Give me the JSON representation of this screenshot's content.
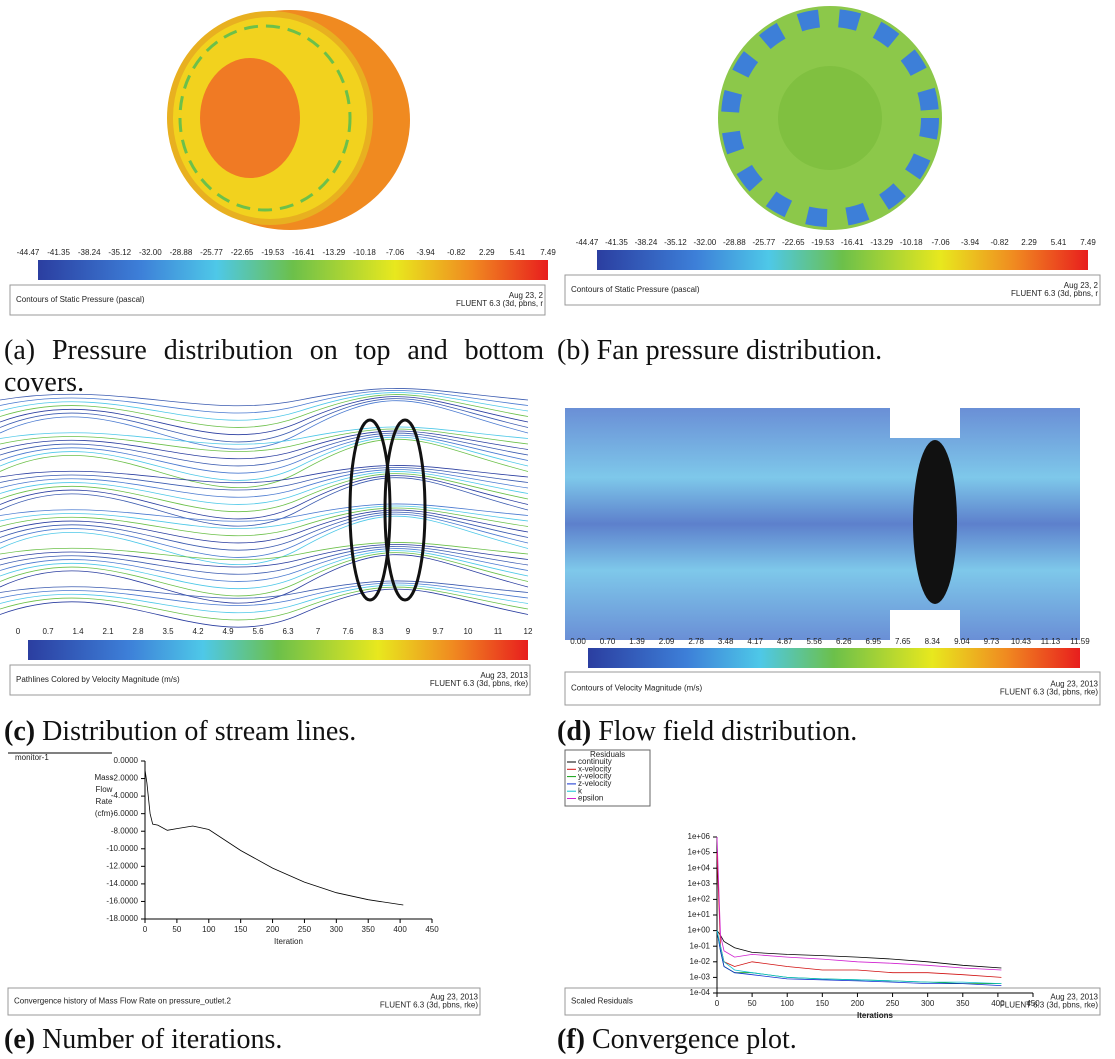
{
  "panels": [
    {
      "label": "(a)",
      "caption": "Pressure distribution on top and bottom covers.",
      "colorbar": [
        "-44.47",
        "-41.35",
        "-38.24",
        "-35.12",
        "-32.00",
        "-28.88",
        "-25.77",
        "-22.65",
        "-19.53",
        "-16.41",
        "-13.29",
        "-10.18",
        "-7.06",
        "-3.94",
        "-0.82",
        "2.29",
        "5.41",
        "7.49"
      ],
      "footer": {
        "title": "Contours of Static Pressure (pascal)",
        "date": "Aug 23, 2",
        "software": "FLUENT 6.3 (3d, pbns, r"
      }
    },
    {
      "label": "(b)",
      "caption": "Fan pressure distribution.",
      "colorbar": [
        "-44.47",
        "-41.35",
        "-38.24",
        "-35.12",
        "-32.00",
        "-28.88",
        "-25.77",
        "-22.65",
        "-19.53",
        "-16.41",
        "-13.29",
        "-10.18",
        "-7.06",
        "-3.94",
        "-0.82",
        "2.29",
        "5.41",
        "7.49"
      ],
      "footer": {
        "title": "Contours of Static Pressure (pascal)",
        "date": "Aug 23, 2",
        "software": "FLUENT 6.3 (3d, pbns, r"
      }
    },
    {
      "label": "(c)",
      "caption": "Distribution of stream lines.",
      "colorbar": [
        "0",
        "0.7",
        "1.4",
        "2.1",
        "2.8",
        "3.5",
        "4.2",
        "4.9",
        "5.6",
        "6.3",
        "7",
        "7.6",
        "8.3",
        "9",
        "9.7",
        "10",
        "11",
        "12"
      ],
      "footer": {
        "title": "Pathlines Colored by Velocity Magnitude (m/s)",
        "date": "Aug 23, 2013",
        "software": "FLUENT 6.3 (3d, pbns, rke)"
      }
    },
    {
      "label": "(d)",
      "caption": "Flow field distribution.",
      "colorbar": [
        "0.00",
        "0.70",
        "1.39",
        "2.09",
        "2.78",
        "3.48",
        "4.17",
        "4.87",
        "5.56",
        "6.26",
        "6.95",
        "7.65",
        "8.34",
        "9.04",
        "9.73",
        "10.43",
        "11.13",
        "11.59"
      ],
      "footer": {
        "title": "Contours of Velocity Magnitude (m/s)",
        "date": "Aug 23, 2013",
        "software": "FLUENT 6.3 (3d, pbns, rke)"
      }
    },
    {
      "label": "(e)",
      "caption": "Number of iterations.",
      "footer": {
        "title": "Convergence history of Mass Flow Rate on pressure_outlet.2",
        "date": "Aug 23, 2013",
        "software": "FLUENT 6.3 (3d, pbns, rke)"
      },
      "chart": {
        "type": "line",
        "x_label": "Iteration",
        "y_label": [
          "Mass",
          "Flow",
          "Rate",
          "(cfm)"
        ],
        "x": [
          0,
          3,
          8,
          12,
          20,
          35,
          50,
          75,
          100,
          150,
          200,
          250,
          300,
          350,
          405
        ],
        "series": [
          {
            "name": "monitor-1",
            "color": "#000000",
            "values": [
              -1,
              -2.5,
              -6,
              -7.2,
              -7.3,
              -7.9,
              -7.7,
              -7.4,
              -7.8,
              -10.2,
              -12.2,
              -13.8,
              -15,
              -15.8,
              -16.4
            ]
          }
        ],
        "xlim": [
          0,
          450
        ],
        "xticks": [
          0,
          50,
          100,
          150,
          200,
          250,
          300,
          350,
          400,
          450
        ],
        "ylim": [
          -18,
          0
        ],
        "yticks": [
          {
            "value": 0,
            "label": "0.0000"
          },
          {
            "value": -2,
            "label": "-2.0000"
          },
          {
            "value": -4,
            "label": "-4.0000"
          },
          {
            "value": -6,
            "label": "-6.0000"
          },
          {
            "value": -8,
            "label": "-8.0000"
          },
          {
            "value": -10,
            "label": "-10.0000"
          },
          {
            "value": -12,
            "label": "-12.0000"
          },
          {
            "value": -14,
            "label": "-14.0000"
          },
          {
            "value": -16,
            "label": "-16.0000"
          },
          {
            "value": -18,
            "label": "-18.0000"
          }
        ]
      }
    },
    {
      "label": "(f)",
      "caption": "Convergence plot.",
      "footer": {
        "title": "Scaled Residuals",
        "date": "Aug 23, 2013",
        "software": "FLUENT 6.3 (3d, pbns, rke)"
      },
      "chart": {
        "type": "line",
        "log_y": true,
        "legend_title": "Residuals",
        "x_label": "Iterations",
        "x": [
          0,
          5,
          10,
          25,
          50,
          100,
          150,
          200,
          250,
          300,
          350,
          405
        ],
        "series": [
          {
            "name": "continuity",
            "color": "#000000",
            "values": [
              1,
              0.5,
              0.2,
              0.08,
              0.04,
              0.03,
              0.025,
              0.02,
              0.015,
              0.01,
              0.006,
              0.004
            ]
          },
          {
            "name": "x-velocity",
            "color": "#d01010",
            "values": [
              100000,
              0.1,
              0.01,
              0.005,
              0.01,
              0.005,
              0.003,
              0.003,
              0.002,
              0.002,
              0.0015,
              0.001
            ]
          },
          {
            "name": "y-velocity",
            "color": "#10a010",
            "values": [
              1,
              0.05,
              0.005,
              0.002,
              0.002,
              0.001,
              0.0008,
              0.0007,
              0.0006,
              0.0005,
              0.0004,
              0.0004
            ]
          },
          {
            "name": "z-velocity",
            "color": "#1030d0",
            "values": [
              1,
              0.05,
              0.005,
              0.002,
              0.0015,
              0.0008,
              0.0007,
              0.0006,
              0.0005,
              0.0004,
              0.0004,
              0.0003
            ]
          },
          {
            "name": "k",
            "color": "#10c0d0",
            "values": [
              1,
              0.1,
              0.01,
              0.003,
              0.002,
              0.001,
              0.0008,
              0.0007,
              0.0006,
              0.0005,
              0.0005,
              0.0004
            ]
          },
          {
            "name": "epsilon",
            "color": "#d020d0",
            "values": [
              1000000,
              0.5,
              0.05,
              0.02,
              0.03,
              0.02,
              0.015,
              0.01,
              0.008,
              0.006,
              0.004,
              0.003
            ]
          }
        ],
        "xlim": [
          0,
          450
        ],
        "xticks": [
          0,
          50,
          100,
          150,
          200,
          250,
          300,
          350,
          400,
          450
        ],
        "ylim": [
          0.0001,
          1000000
        ],
        "yticks": [
          {
            "value": 0.0001,
            "label": "1e-04"
          },
          {
            "value": 0.001,
            "label": "1e-03"
          },
          {
            "value": 0.01,
            "label": "1e-02"
          },
          {
            "value": 0.1,
            "label": "1e-01"
          },
          {
            "value": 1,
            "label": "1e+00"
          },
          {
            "value": 10,
            "label": "1e+01"
          },
          {
            "value": 100,
            "label": "1e+02"
          },
          {
            "value": 1000,
            "label": "1e+03"
          },
          {
            "value": 10000,
            "label": "1e+04"
          },
          {
            "value": 100000,
            "label": "1e+05"
          },
          {
            "value": 1000000,
            "label": "1e+06"
          }
        ]
      }
    }
  ]
}
